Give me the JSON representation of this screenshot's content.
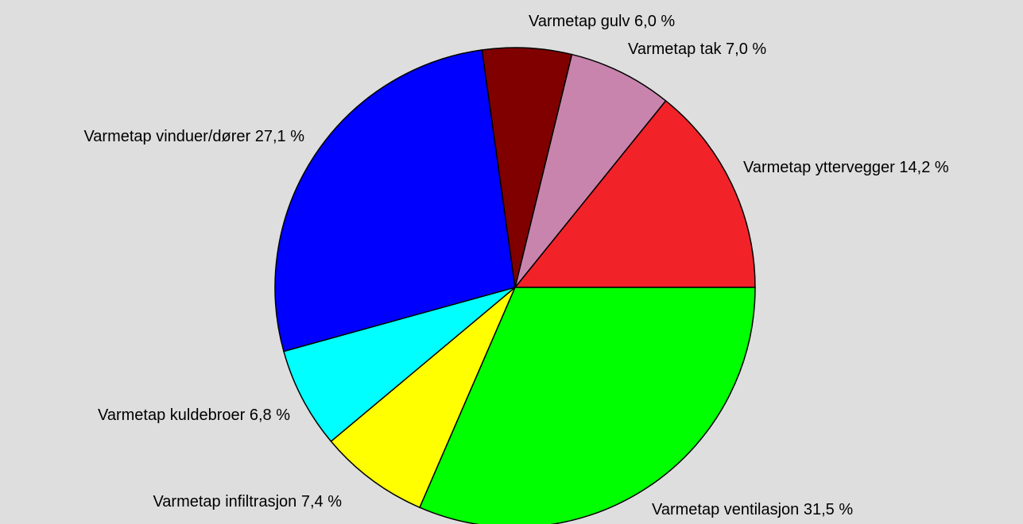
{
  "chart_data": {
    "type": "pie",
    "categories": [
      "Varmetap yttervegger",
      "Varmetap tak",
      "Varmetap gulv",
      "Varmetap vinduer/dører",
      "Varmetap kuldebroer",
      "Varmetap infiltrasjon",
      "Varmetap ventilasjon"
    ],
    "values": [
      14.2,
      7.0,
      6.0,
      27.1,
      6.8,
      7.4,
      31.5
    ],
    "value_labels": [
      "14,2 %",
      "7,0 %",
      "6,0 %",
      "27,1 %",
      "6,8 %",
      "7,4 %",
      "31,5 %"
    ],
    "colors": [
      "#f22229",
      "#c884ad",
      "#800000",
      "#0000ff",
      "#00ffff",
      "#ffff00",
      "#00ff00"
    ]
  }
}
